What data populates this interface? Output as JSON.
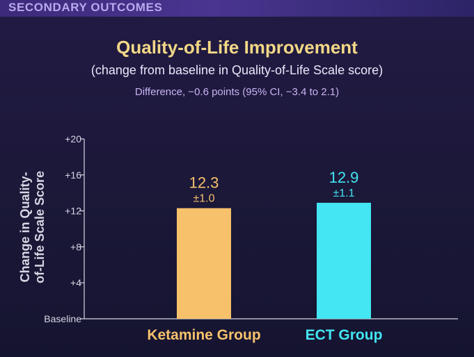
{
  "header": {
    "section": "SECONDARY OUTCOMES"
  },
  "colors": {
    "title": "#f2d886",
    "ketamine": "#f7c16c",
    "ect": "#43e6f2",
    "axis": "#d8d6e4"
  },
  "chart_data": {
    "type": "bar",
    "title": "Quality-of-Life Improvement",
    "subtitle": "(change from baseline in Quality-of-Life Scale score)",
    "annotation": "Difference, −0.6 points (95% CI, −3.4 to 2.1)",
    "ylabel": "Change in Quality-of-Life Scale Score",
    "ylim": [
      0,
      20
    ],
    "yticks": [
      {
        "value": 0,
        "label": "Baseline"
      },
      {
        "value": 4,
        "label": "+4"
      },
      {
        "value": 8,
        "label": "+8"
      },
      {
        "value": 12,
        "label": "+12"
      },
      {
        "value": 16,
        "label": "+16"
      },
      {
        "value": 20,
        "label": "+20"
      }
    ],
    "categories": [
      "Ketamine Group",
      "ECT Group"
    ],
    "values": [
      12.3,
      12.9
    ],
    "value_labels": [
      "12.3",
      "12.9"
    ],
    "errors": [
      "±1.0",
      "±1.1"
    ],
    "grid": false
  }
}
